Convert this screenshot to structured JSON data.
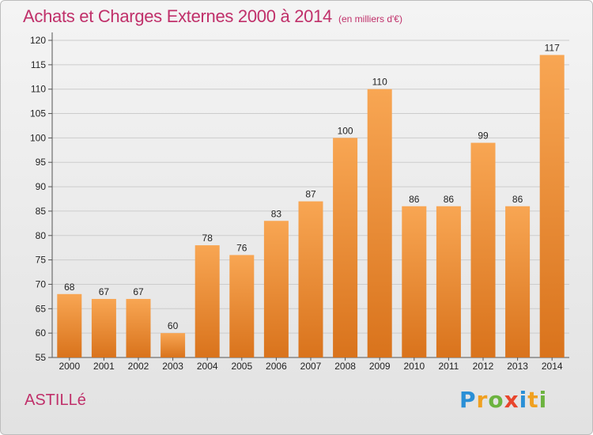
{
  "chart_data": {
    "type": "bar",
    "title": "Achats et Charges Externes 2000 à 2014",
    "subtitle": "(en milliers d'€)",
    "categories": [
      "2000",
      "2001",
      "2002",
      "2003",
      "2004",
      "2005",
      "2006",
      "2007",
      "2008",
      "2009",
      "2010",
      "2011",
      "2012",
      "2013",
      "2014"
    ],
    "values": [
      68,
      67,
      67,
      60,
      78,
      76,
      83,
      87,
      100,
      110,
      86,
      86,
      99,
      86,
      117
    ],
    "ylim": [
      55,
      120
    ],
    "yticks": [
      55,
      60,
      65,
      70,
      75,
      80,
      85,
      90,
      95,
      100,
      105,
      110,
      115,
      120
    ],
    "grid": true,
    "colors": {
      "bar_top": "#f8a653",
      "bar_bottom": "#d9731c",
      "grid": "#cccccc",
      "title": "#c0306a"
    }
  },
  "location": "ASTILLé",
  "logo": {
    "text": "Proxiti",
    "letters": [
      {
        "ch": "P",
        "color": "#2a8fd6"
      },
      {
        "ch": "r",
        "color": "#f0a020"
      },
      {
        "ch": "o",
        "color": "#6cb33f"
      },
      {
        "ch": "x",
        "color": "#e8452c"
      },
      {
        "ch": "i",
        "color": "#2a8fd6"
      },
      {
        "ch": "t",
        "color": "#f0a020"
      },
      {
        "ch": "i",
        "color": "#6cb33f"
      }
    ]
  }
}
